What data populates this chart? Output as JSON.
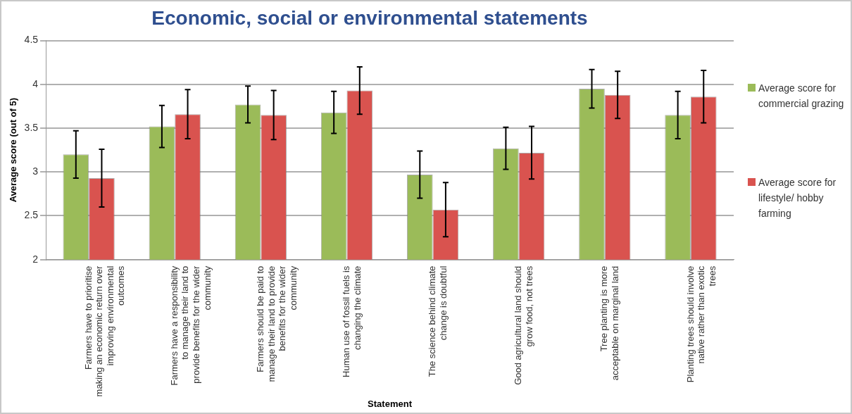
{
  "chart_data": {
    "type": "bar",
    "title": "Economic, social or environmental statements",
    "xlabel": "Statement",
    "ylabel": "Average score (out of 5)",
    "categories": [
      "Farmers have to prioritise making an economic return over improving environmental outcomes",
      "Farmers have a responsibility to manage their land to provide benefits for the wider community",
      "Farmers should be paid to manage their land to provide benefits for the wider community",
      "Human use of fossil fuels is changing the climate",
      "The science behind climate change is doubtful",
      "Good agricultural land should grow food, not trees",
      "Tree planting is more acceptable on marginal land",
      "Planting trees should involve native rather than exotic trees"
    ],
    "series": [
      {
        "name": "Average score for commercial grazing",
        "color": "#9bbb59",
        "values": [
          3.2,
          3.52,
          3.77,
          3.68,
          2.97,
          3.27,
          3.95,
          3.65
        ],
        "errors": [
          0.27,
          0.24,
          0.21,
          0.24,
          0.27,
          0.24,
          0.22,
          0.27
        ]
      },
      {
        "name": "Average score for lifestyle/ hobby farming",
        "color": "#d9534f",
        "values": [
          2.93,
          3.66,
          3.65,
          3.93,
          2.57,
          3.22,
          3.88,
          3.86
        ],
        "errors": [
          0.33,
          0.28,
          0.28,
          0.27,
          0.31,
          0.3,
          0.27,
          0.3
        ]
      }
    ],
    "ylim": [
      2,
      4.5
    ],
    "yticks": [
      2,
      2.5,
      3,
      3.5,
      4,
      4.5
    ],
    "grid": "y",
    "legend": "right"
  }
}
